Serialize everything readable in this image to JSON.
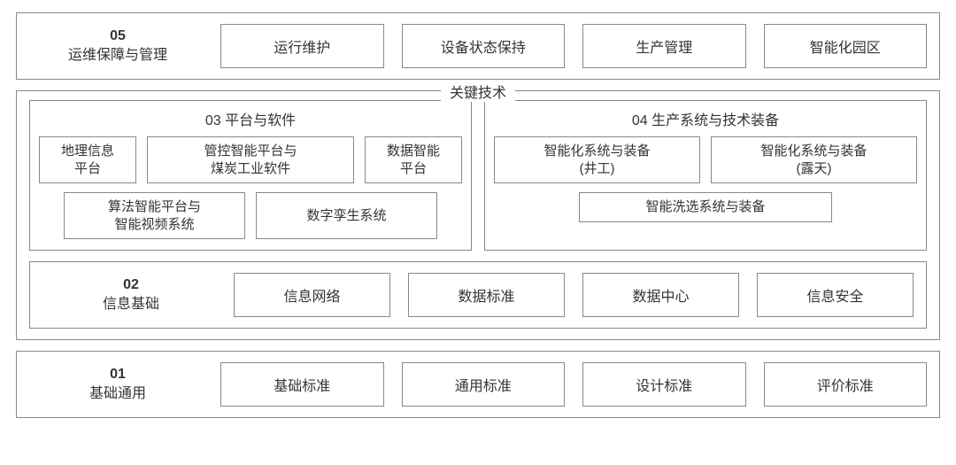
{
  "row05": {
    "num": "05",
    "title": "运维保障与管理",
    "items": [
      "运行维护",
      "设备状态保持",
      "生产管理",
      "智能化园区"
    ]
  },
  "keyTech": {
    "legend": "关键技术",
    "col03": {
      "title": "03  平台与软件",
      "row1": [
        "地理信息\n平台",
        "管控智能平台与\n煤炭工业软件",
        "数据智能\n平台"
      ],
      "row2": [
        "算法智能平台与\n智能视频系统",
        "数字孪生系统"
      ]
    },
    "col04": {
      "title": "04  生产系统与技术装备",
      "row1": [
        "智能化系统与装备\n(井工)",
        "智能化系统与装备\n(露天)"
      ],
      "row2": [
        "智能洗选系统与装备"
      ]
    },
    "row02": {
      "num": "02",
      "title": "信息基础",
      "items": [
        "信息网络",
        "数据标准",
        "数据中心",
        "信息安全"
      ]
    }
  },
  "row01": {
    "num": "01",
    "title": "基础通用",
    "items": [
      "基础标准",
      "通用标准",
      "设计标准",
      "评价标准"
    ]
  },
  "style": {
    "border_color": "#888888",
    "text_color": "#333333",
    "background": "#ffffff",
    "font_family": "Microsoft YaHei, SimSun, sans-serif",
    "base_fontsize": 16
  }
}
